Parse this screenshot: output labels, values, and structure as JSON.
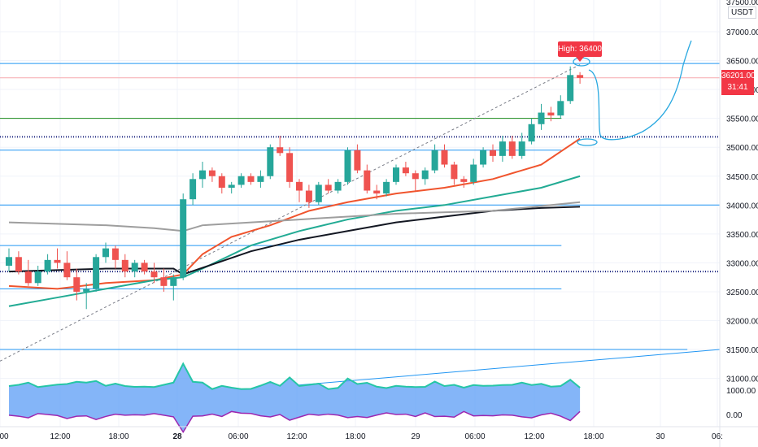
{
  "chart_data": {
    "type": "candlestick",
    "currency": "USDT",
    "y_ticks": [
      "37000.00",
      "36500.00",
      "36000.00",
      "35500.00",
      "35000.00",
      "34500.00",
      "34000.00",
      "33500.00",
      "33000.00",
      "32500.00",
      "32000.00",
      "31500.00",
      "31000.00"
    ],
    "y_tick_partial": "37500.00",
    "x_ticks": [
      {
        "label": "00",
        "bold": false
      },
      {
        "label": "12:00",
        "bold": false
      },
      {
        "label": "18:00",
        "bold": false
      },
      {
        "label": "28",
        "bold": true
      },
      {
        "label": "06:00",
        "bold": false
      },
      {
        "label": "12:00",
        "bold": false
      },
      {
        "label": "18:00",
        "bold": false
      },
      {
        "label": "29",
        "bold": false
      },
      {
        "label": "06:00",
        "bold": false
      },
      {
        "label": "12:00",
        "bold": false
      },
      {
        "label": "18:00",
        "bold": false
      },
      {
        "label": "30",
        "bold": false
      },
      {
        "label": "06:",
        "bold": false
      }
    ],
    "current_price": "36201.00",
    "countdown": "31:41",
    "high_label": "High: 36400",
    "y_range": [
      30900,
      37600
    ],
    "candles": [
      [
        32950,
        33250,
        32850,
        33100
      ],
      [
        33100,
        33200,
        32800,
        32850
      ],
      [
        32850,
        33050,
        32600,
        32650
      ],
      [
        32650,
        32950,
        32600,
        32850
      ],
      [
        32850,
        33150,
        32800,
        33050
      ],
      [
        33050,
        33250,
        32900,
        33000
      ],
      [
        33000,
        33200,
        32700,
        32750
      ],
      [
        32750,
        32900,
        32350,
        32500
      ],
      [
        32500,
        32650,
        32200,
        32550
      ],
      [
        32550,
        33150,
        32500,
        33100
      ],
      [
        33100,
        33350,
        33000,
        33250
      ],
      [
        33250,
        33300,
        32900,
        33050
      ],
      [
        33050,
        33150,
        32750,
        32850
      ],
      [
        32850,
        33050,
        32750,
        33000
      ],
      [
        33000,
        33050,
        32800,
        32850
      ],
      [
        32850,
        33000,
        32650,
        32750
      ],
      [
        32750,
        32900,
        32500,
        32600
      ],
      [
        32600,
        32800,
        32350,
        32750
      ],
      [
        32750,
        34200,
        32700,
        34100
      ],
      [
        34100,
        34550,
        34000,
        34450
      ],
      [
        34450,
        34750,
        34300,
        34600
      ],
      [
        34600,
        34650,
        34400,
        34500
      ],
      [
        34500,
        34550,
        34200,
        34300
      ],
      [
        34300,
        34400,
        34200,
        34350
      ],
      [
        34350,
        34550,
        34300,
        34500
      ],
      [
        34500,
        34550,
        34350,
        34400
      ],
      [
        34400,
        34600,
        34300,
        34500
      ],
      [
        34500,
        35050,
        34450,
        35000
      ],
      [
        35000,
        35200,
        34850,
        34900
      ],
      [
        34900,
        35000,
        34300,
        34400
      ],
      [
        34400,
        34450,
        34050,
        34250
      ],
      [
        34250,
        34350,
        33950,
        34050
      ],
      [
        34050,
        34400,
        34000,
        34350
      ],
      [
        34350,
        34450,
        34200,
        34250
      ],
      [
        34250,
        34450,
        34200,
        34400
      ],
      [
        34400,
        35000,
        34350,
        34950
      ],
      [
        34950,
        35050,
        34550,
        34600
      ],
      [
        34600,
        34700,
        34200,
        34250
      ],
      [
        34250,
        34350,
        34100,
        34200
      ],
      [
        34200,
        34450,
        34150,
        34400
      ],
      [
        34400,
        34700,
        34350,
        34650
      ],
      [
        34650,
        34750,
        34500,
        34550
      ],
      [
        34550,
        34600,
        34250,
        34450
      ],
      [
        34450,
        34650,
        34350,
        34600
      ],
      [
        34600,
        35050,
        34550,
        34950
      ],
      [
        34950,
        35050,
        34650,
        34700
      ],
      [
        34700,
        34750,
        34350,
        34450
      ],
      [
        34450,
        34500,
        34300,
        34400
      ],
      [
        34400,
        34800,
        34350,
        34700
      ],
      [
        34700,
        35000,
        34650,
        34950
      ],
      [
        34950,
        35050,
        34750,
        34850
      ],
      [
        34850,
        35200,
        34750,
        35100
      ],
      [
        35100,
        35200,
        34800,
        34850
      ],
      [
        34850,
        35250,
        34800,
        35100
      ],
      [
        35100,
        35500,
        35050,
        35400
      ],
      [
        35400,
        35750,
        35300,
        35600
      ],
      [
        35600,
        35700,
        35450,
        35550
      ],
      [
        35550,
        35900,
        35500,
        35800
      ],
      [
        35800,
        36400,
        35750,
        36250
      ],
      [
        36250,
        36300,
        36100,
        36201
      ]
    ],
    "lines": {
      "ema_red": [
        [
          0,
          32600
        ],
        [
          5,
          32550
        ],
        [
          10,
          32650
        ],
        [
          15,
          32700
        ],
        [
          18,
          32800
        ],
        [
          20,
          33150
        ],
        [
          23,
          33450
        ],
        [
          27,
          33650
        ],
        [
          31,
          33900
        ],
        [
          35,
          34050
        ],
        [
          40,
          34200
        ],
        [
          45,
          34300
        ],
        [
          50,
          34450
        ],
        [
          55,
          34700
        ],
        [
          59,
          35150
        ]
      ],
      "ema_teal": [
        [
          0,
          32250
        ],
        [
          5,
          32400
        ],
        [
          10,
          32550
        ],
        [
          15,
          32700
        ],
        [
          18,
          32750
        ],
        [
          20,
          32900
        ],
        [
          25,
          33300
        ],
        [
          30,
          33550
        ],
        [
          35,
          33750
        ],
        [
          40,
          33900
        ],
        [
          45,
          34000
        ],
        [
          50,
          34150
        ],
        [
          55,
          34300
        ],
        [
          59,
          34500
        ]
      ],
      "ma_black": [
        [
          0,
          32850
        ],
        [
          10,
          32900
        ],
        [
          17,
          32900
        ],
        [
          18,
          32800
        ],
        [
          25,
          33200
        ],
        [
          30,
          33400
        ],
        [
          35,
          33550
        ],
        [
          40,
          33700
        ],
        [
          45,
          33800
        ],
        [
          50,
          33900
        ],
        [
          55,
          33950
        ],
        [
          59,
          33970
        ]
      ],
      "ma_gray": [
        [
          0,
          33700
        ],
        [
          10,
          33650
        ],
        [
          15,
          33600
        ],
        [
          18,
          33550
        ],
        [
          20,
          33650
        ],
        [
          30,
          33750
        ],
        [
          40,
          33850
        ],
        [
          50,
          33900
        ],
        [
          59,
          34050
        ]
      ]
    },
    "horizontal_lines": [
      {
        "price": 36450,
        "color": "#2196f3",
        "from": 0,
        "to": 1
      },
      {
        "price": 36201,
        "color": "#f7a9ad",
        "from": 0,
        "to": 1
      },
      {
        "price": 35500,
        "color": "#1b8a1b",
        "from": 0,
        "to": 0.78
      },
      {
        "price": 35180,
        "color": "#1a237e",
        "from": 0,
        "to": 1,
        "dotted": true
      },
      {
        "price": 34950,
        "color": "#2196f3",
        "from": 0,
        "to": 0.78
      },
      {
        "price": 34000,
        "color": "#2196f3",
        "from": 0,
        "to": 1
      },
      {
        "price": 33300,
        "color": "#2196f3",
        "from": 0,
        "to": 0.78
      },
      {
        "price": 32850,
        "color": "#1a237e",
        "from": 0,
        "to": 1,
        "dotted": true
      },
      {
        "price": 32550,
        "color": "#2196f3",
        "from": 0,
        "to": 0.78
      },
      {
        "price": 31500,
        "color": "#2196f3",
        "from": 0,
        "to": 0.955
      }
    ],
    "oscillator": {
      "y_ticks": [
        "1000.00",
        "0.00"
      ]
    }
  }
}
